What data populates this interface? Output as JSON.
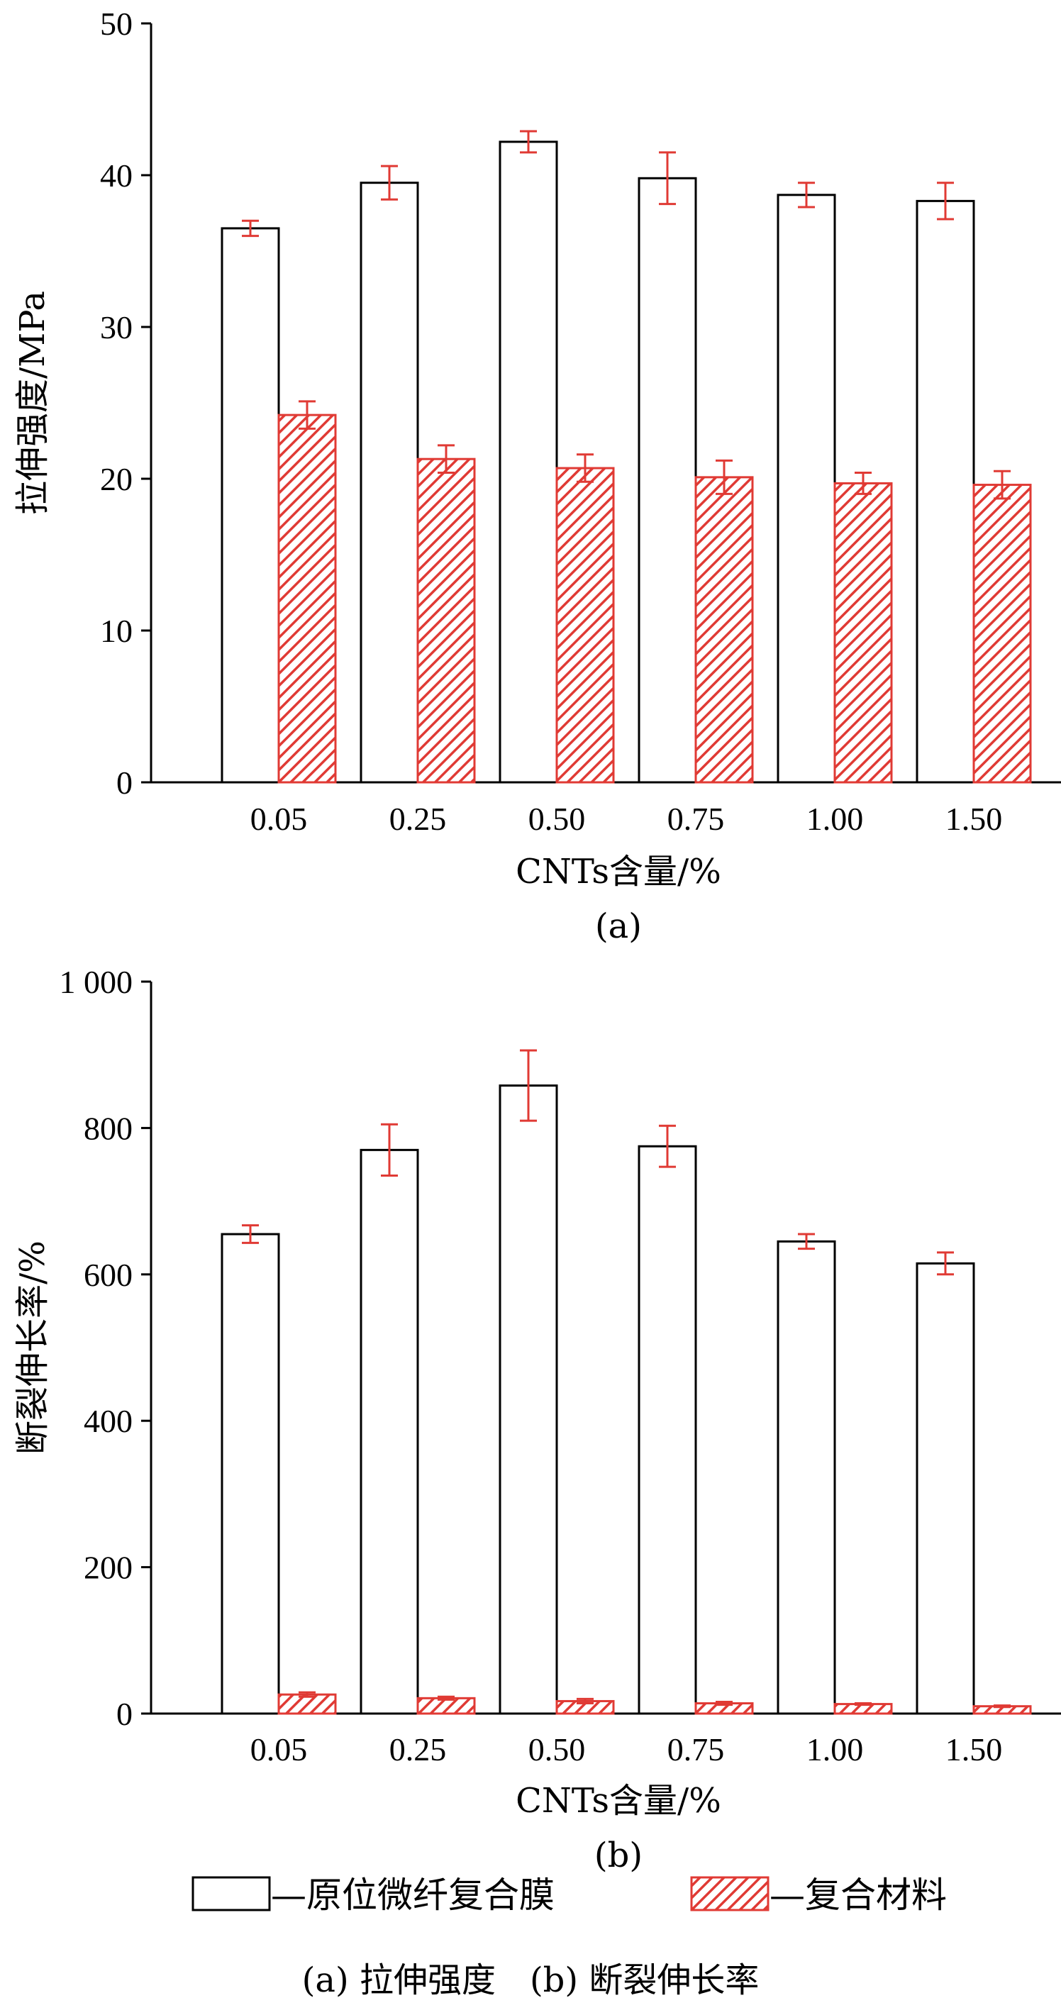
{
  "colors": {
    "series_a": "#000000",
    "series_b": "#e03a34",
    "error_bar": "#e03a34",
    "axis": "#000000"
  },
  "chart_data": [
    {
      "id": "a",
      "type": "bar",
      "title": "",
      "panel_label": "(a)",
      "categories": [
        "0.05",
        "0.25",
        "0.50",
        "0.75",
        "1.00",
        "1.50"
      ],
      "xlabel": "CNTs含量/%",
      "ylabel": "拉伸强度/MPa",
      "ylim": [
        0,
        50
      ],
      "yticks": [
        0,
        10,
        20,
        30,
        40,
        50
      ],
      "ytick_labels": [
        "0",
        "10",
        "20",
        "30",
        "40",
        "50"
      ],
      "grid": false,
      "series": [
        {
          "name": "—原位微纤复合膜",
          "fill": "white",
          "values": [
            36.5,
            39.5,
            42.2,
            39.8,
            38.7,
            38.3
          ],
          "errors": [
            0.5,
            1.1,
            0.7,
            1.7,
            0.8,
            1.2
          ]
        },
        {
          "name": "—复合材料",
          "fill": "hatch",
          "values": [
            24.2,
            21.3,
            20.7,
            20.1,
            19.7,
            19.6
          ],
          "errors": [
            0.9,
            0.9,
            0.9,
            1.1,
            0.7,
            0.9
          ]
        }
      ]
    },
    {
      "id": "b",
      "type": "bar",
      "title": "",
      "panel_label": "(b)",
      "categories": [
        "0.05",
        "0.25",
        "0.50",
        "0.75",
        "1.00",
        "1.50"
      ],
      "xlabel": "CNTs含量/%",
      "ylabel": "断裂伸长率/%",
      "ylim": [
        0,
        1000
      ],
      "yticks": [
        0,
        200,
        400,
        600,
        800,
        1000
      ],
      "ytick_labels": [
        "0",
        "200",
        "400",
        "600",
        "800",
        "1 000"
      ],
      "grid": false,
      "series": [
        {
          "name": "—原位微纤复合膜",
          "fill": "white",
          "values": [
            655,
            770,
            858,
            775,
            645,
            615
          ],
          "errors": [
            12,
            35,
            48,
            28,
            10,
            15
          ]
        },
        {
          "name": "—复合材料",
          "fill": "hatch",
          "values": [
            26,
            21,
            17,
            14,
            13,
            10
          ],
          "errors": [
            3,
            2,
            3,
            2,
            1,
            1
          ]
        }
      ]
    }
  ],
  "legend": {
    "placement": "bottom",
    "items": [
      {
        "label": "—原位微纤复合膜",
        "fill": "white"
      },
      {
        "label": "—复合材料",
        "fill": "hatch"
      }
    ]
  },
  "caption": "(a) 拉伸强度　(b) 断裂伸长率"
}
